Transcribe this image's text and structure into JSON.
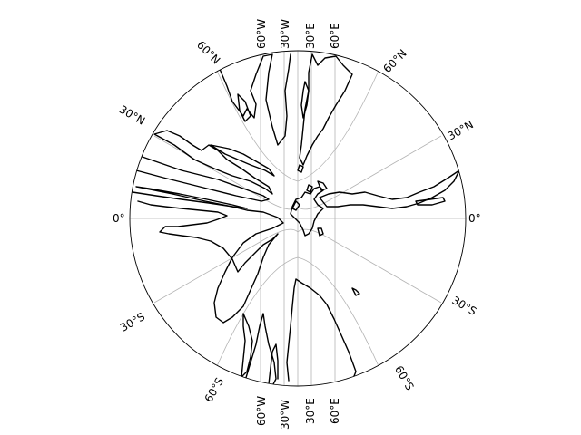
{
  "projection": "azimuthal projection centered on 0° latitude, 0° longitude (Mediterranean region)",
  "colors": {
    "background": "#ffffff",
    "coastline": "#000000",
    "graticule": "#b4b4b4",
    "frame": "#000000"
  },
  "labels": {
    "left": {
      "n60": "60°N",
      "n30": "30°N",
      "eq": "0°",
      "s30": "30°S",
      "s60": "60°S"
    },
    "right": {
      "n60": "60°N",
      "n30": "30°N",
      "eq": "0°",
      "s30": "30°S",
      "s60": "60°S"
    },
    "top": {
      "w60": "60°W",
      "w30": "30°W",
      "e30": "30°E",
      "e60": "60°E"
    },
    "bottom": {
      "w60": "60°W",
      "w30": "30°W",
      "e30": "30°E",
      "e60": "60°E"
    }
  },
  "graticule": {
    "meridians": [
      "60°W",
      "30°W",
      "0°",
      "30°E",
      "60°E"
    ],
    "parallels": [
      "60°S",
      "30°S",
      "0°",
      "30°N",
      "60°N"
    ]
  }
}
